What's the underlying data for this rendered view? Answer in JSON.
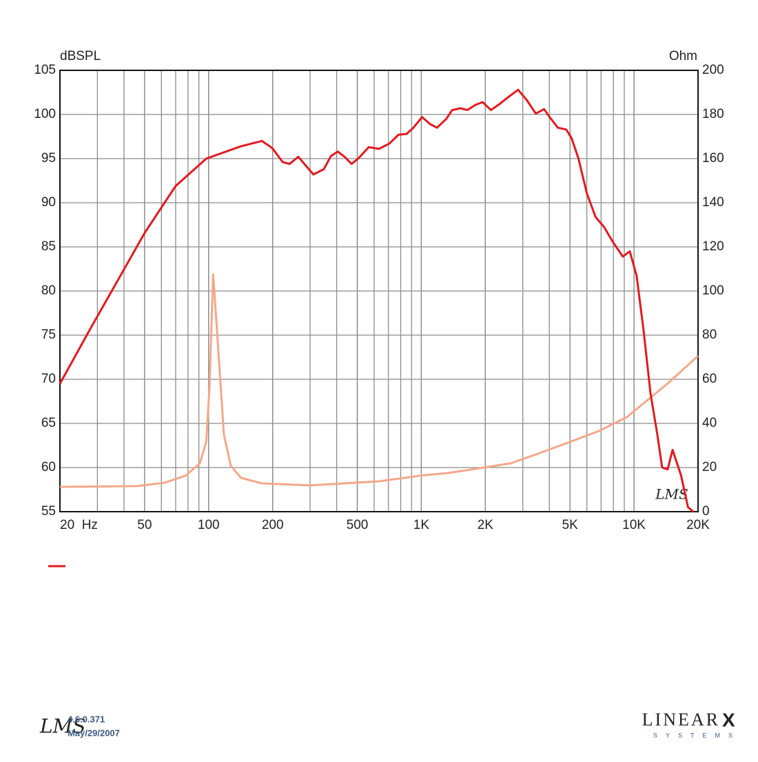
{
  "chart_data": {
    "type": "line",
    "y_label": "dBSPL",
    "y2_label": "Ohm",
    "watermark": "LMS",
    "xscale": "log",
    "grid": true,
    "xlim": [
      20,
      20000
    ],
    "xticks": [
      {
        "value": 20,
        "label": "20  Hz"
      },
      50,
      100,
      200,
      500,
      {
        "value": 1000,
        "label": "1K"
      },
      {
        "value": 2000,
        "label": "2K"
      },
      {
        "value": 5000,
        "label": "5K"
      },
      {
        "value": 10000,
        "label": "10K"
      },
      {
        "value": 20000,
        "label": "20K"
      }
    ],
    "ylim": [
      55,
      105
    ],
    "yticks": [
      55,
      60,
      65,
      70,
      75,
      80,
      85,
      90,
      95,
      100,
      105
    ],
    "y2lim": [
      0,
      200
    ],
    "y2ticks": [
      0,
      20,
      40,
      60,
      80,
      100,
      120,
      140,
      160,
      180,
      200
    ],
    "series": [
      {
        "color": "#e3191f",
        "x": [
          20,
          27.6,
          50.1,
          70,
          97.5,
          142,
          178,
          199,
          223,
          240,
          264,
          311,
          348,
          376,
          405,
          436,
          470,
          505,
          566,
          632,
          708,
          780,
          852,
          918,
          1008,
          1101,
          1185,
          1310,
          1397,
          1527,
          1646,
          1802,
          1942,
          2124,
          2338,
          2573,
          2851,
          3137,
          3453,
          3778,
          4009,
          4385,
          4799,
          5091,
          5483,
          5995,
          6593,
          7251,
          7932,
          8864,
          9549,
          10290,
          11091,
          11950,
          12873,
          13563,
          14389,
          15172,
          16650,
          17934,
          19016
        ],
        "values": [
          69.5,
          75.6,
          86.6,
          91.9,
          95,
          96.4,
          97,
          96.2,
          94.6,
          94.4,
          95.2,
          93.2,
          93.8,
          95.3,
          95.8,
          95.2,
          94.4,
          95,
          96.3,
          96.1,
          96.7,
          97.7,
          97.8,
          98.5,
          99.7,
          98.9,
          98.5,
          99.5,
          100.5,
          100.7,
          100.5,
          101.1,
          101.4,
          100.5,
          101.2,
          102,
          102.8,
          101.6,
          100.1,
          100.6,
          99.7,
          98.5,
          98.3,
          97.3,
          95,
          91.1,
          88.4,
          87.2,
          85.6,
          83.9,
          84.5,
          81.7,
          75.5,
          68.4,
          63.75,
          60,
          59.8,
          62,
          59.1,
          55.5,
          55
        ]
      },
      {
        "color": "#f5a78a",
        "axis": "y2",
        "x": [
          20,
          46,
          62,
          78,
          91,
          97.5,
          101,
          105,
          109,
          118,
          127,
          142,
          178,
          300,
          632,
          988,
          1330,
          1802,
          2630,
          3530,
          5091,
          6855,
          9244,
          11580,
          14389,
          20000
        ],
        "values": [
          11.25,
          11.6,
          13.1,
          16.3,
          21.9,
          31.9,
          56.9,
          107.5,
          85,
          35,
          20.9,
          15.3,
          12.8,
          11.9,
          13.75,
          16.3,
          17.5,
          19.4,
          21.9,
          26.25,
          31.9,
          36.6,
          42.8,
          50.6,
          58.1,
          70.6
        ]
      }
    ]
  },
  "footer": {
    "logo": "LMS",
    "version": "4.6.0.371",
    "date": "May/29/2007",
    "brand": "LINEAR",
    "brand_mark": "X",
    "brand_sub": "SYSTEMS"
  }
}
